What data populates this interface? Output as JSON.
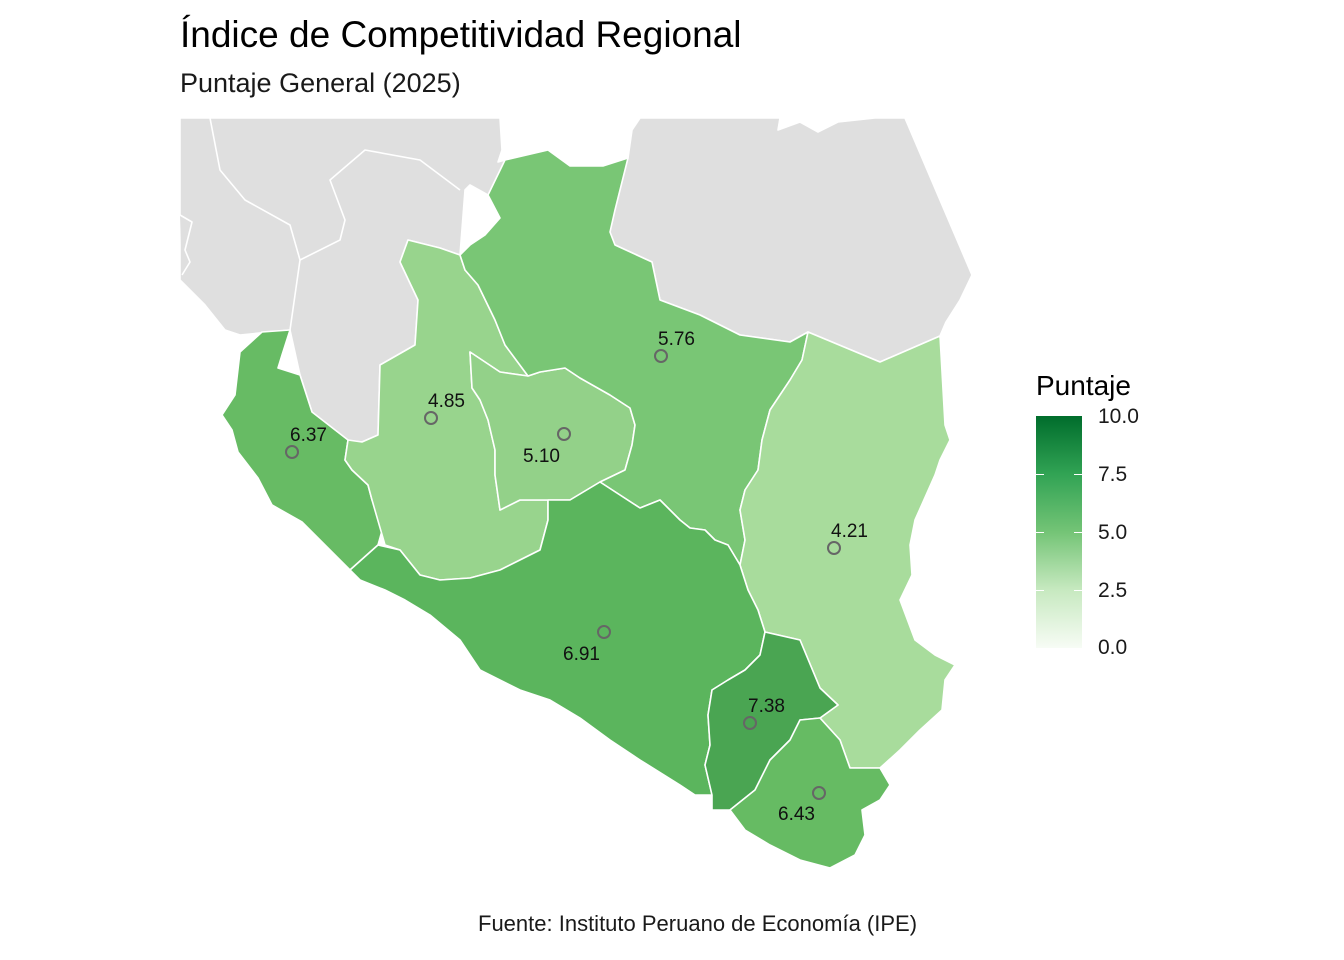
{
  "title": "Índice de Competitividad Regional",
  "subtitle": "Puntaje General (2025)",
  "caption": "Fuente: Instituto Peruano de Economía (IPE)",
  "legend": {
    "title": "Puntaje",
    "ticks": [
      "10.0",
      "7.5",
      "5.0",
      "2.5",
      "0.0"
    ],
    "range": [
      0,
      10
    ],
    "colors": [
      "#f7fcf5",
      "#c7e9c0",
      "#74c476",
      "#31a354",
      "#006d2c"
    ]
  },
  "regions": [
    {
      "id": "costa-norte",
      "value": 6.37,
      "label": "6.37",
      "color": "#67bb64"
    },
    {
      "id": "sierra-oeste",
      "value": 4.85,
      "label": "4.85",
      "color": "#98d48d"
    },
    {
      "id": "sierra-centro",
      "value": 5.1,
      "label": "5.10",
      "color": "#93d189"
    },
    {
      "id": "norte-central",
      "value": 5.76,
      "label": "5.76",
      "color": "#79c675"
    },
    {
      "id": "oriente",
      "value": 4.21,
      "label": "4.21",
      "color": "#a8dc9c"
    },
    {
      "id": "costa-sur",
      "value": 6.91,
      "label": "6.91",
      "color": "#5bb55d"
    },
    {
      "id": "sur-centro",
      "value": 7.38,
      "label": "7.38",
      "color": "#4aa552"
    },
    {
      "id": "sur-extremo",
      "value": 6.43,
      "label": "6.43",
      "color": "#66bb63"
    }
  ]
}
